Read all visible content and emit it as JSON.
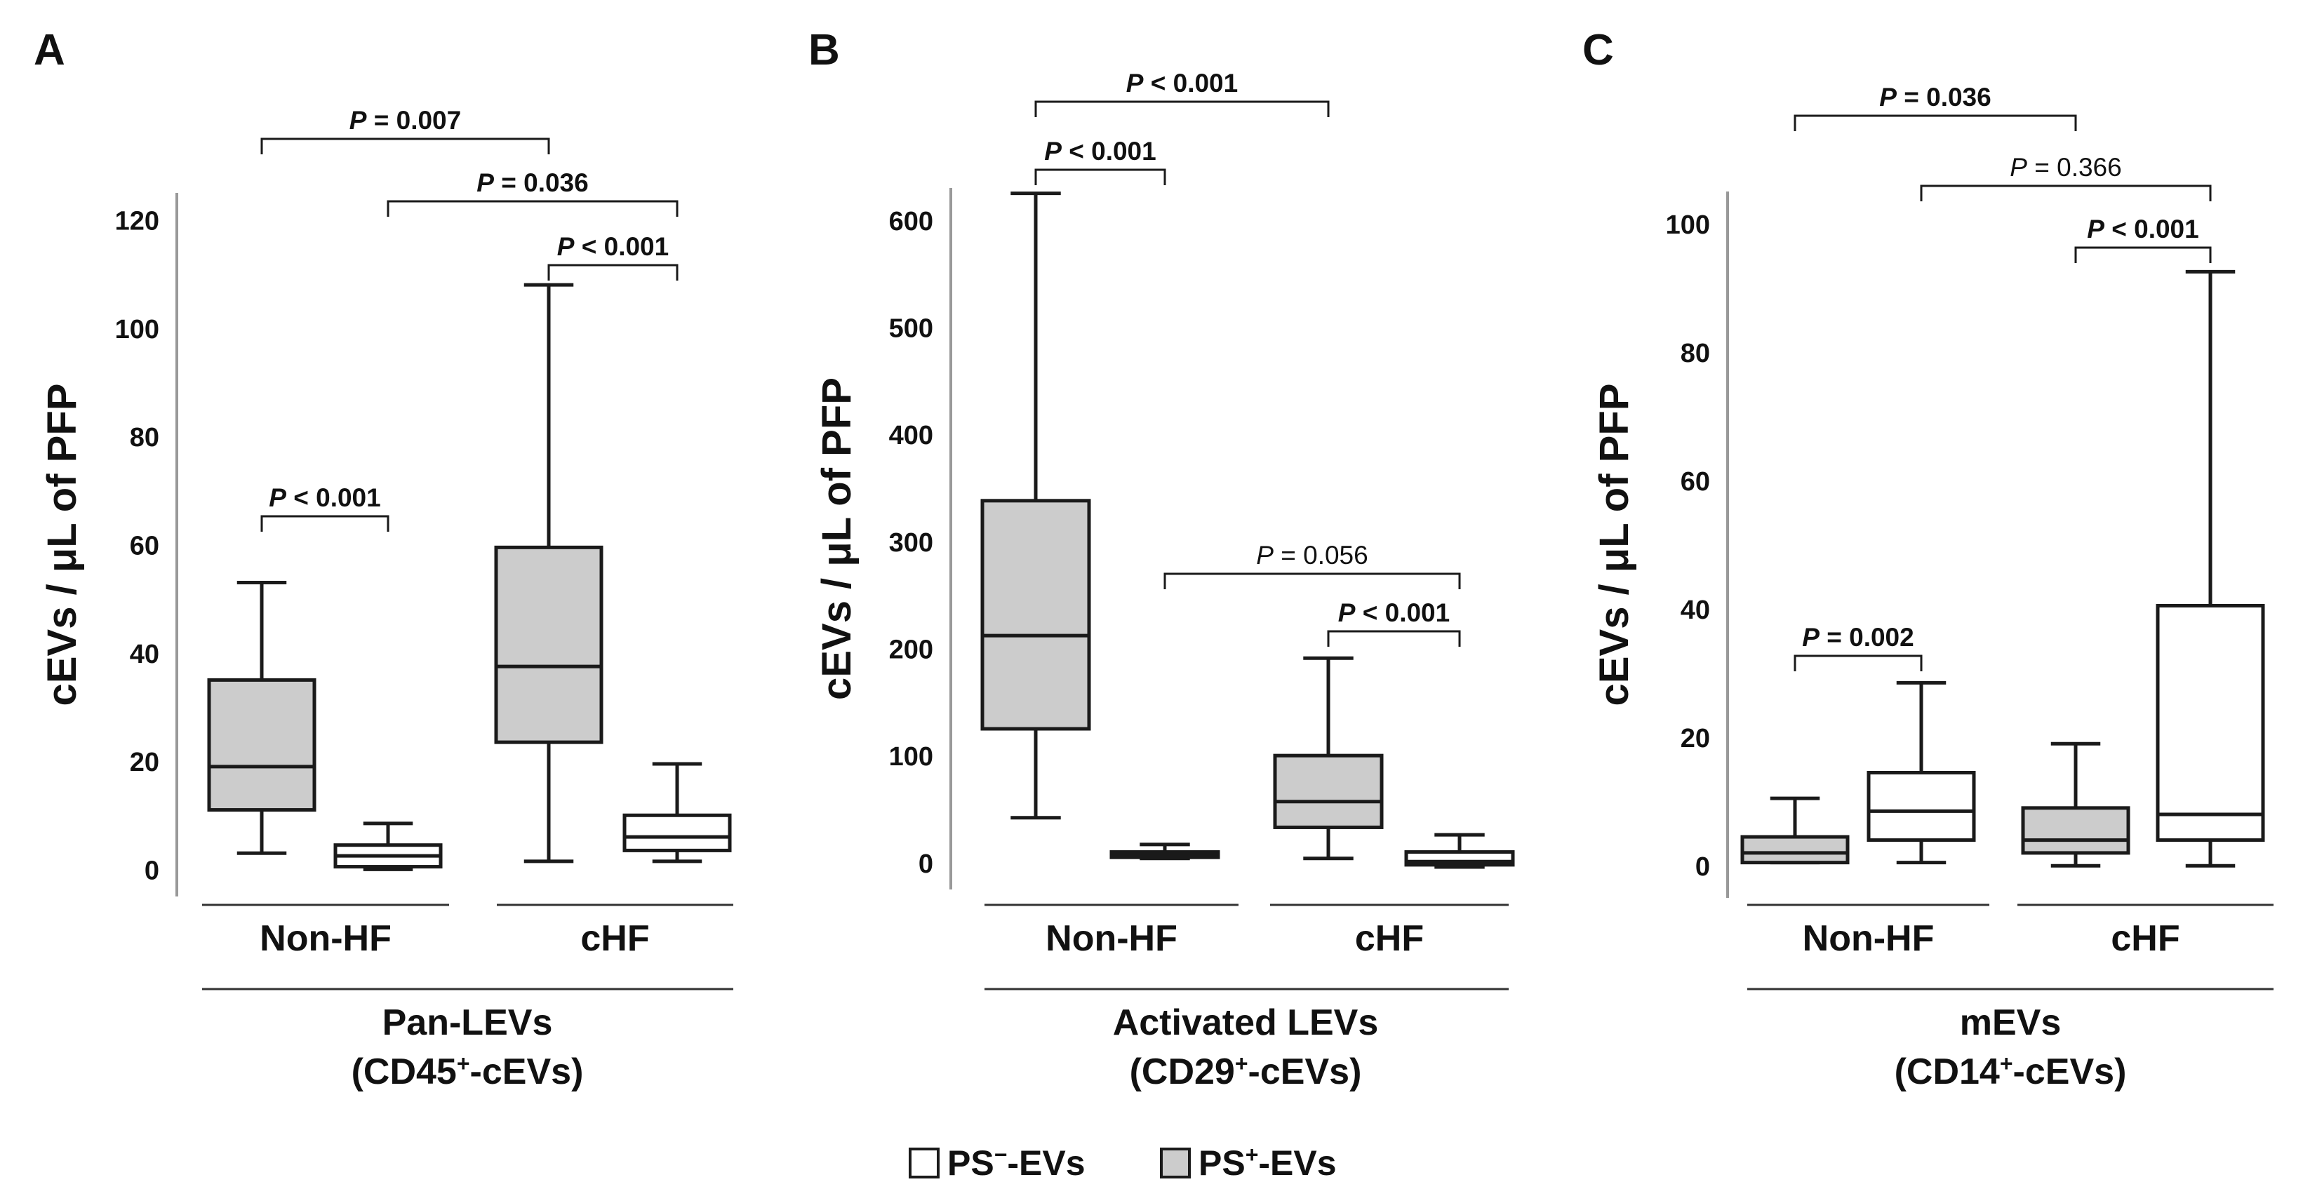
{
  "chart_data": [
    {
      "type": "box",
      "panel_label": "A",
      "title_line1": "Pan-LEVs",
      "title_line2_prefix": "(CD45",
      "title_line2_sup": "+",
      "title_line2_suffix": "-cEVs)",
      "ylabel": "cEVs / μL of PFP",
      "ylim": [
        -5,
        125
      ],
      "yticks": [
        0,
        20,
        40,
        60,
        80,
        100,
        120
      ],
      "groups": [
        "Non-HF",
        "cHF"
      ],
      "boxes": [
        {
          "group": "Non-HF",
          "series": "PS+-EVs",
          "fill": "#cccccc",
          "min": 3,
          "q1": 11,
          "median": 19,
          "q3": 35,
          "max": 53
        },
        {
          "group": "Non-HF",
          "series": "PS--EVs",
          "fill": "#ffffff",
          "min": 0,
          "q1": 0.5,
          "median": 2.5,
          "q3": 4.5,
          "max": 8.5
        },
        {
          "group": "cHF",
          "series": "PS+-EVs",
          "fill": "#cccccc",
          "min": 1.5,
          "q1": 23.5,
          "median": 37.5,
          "q3": 59.5,
          "max": 108
        },
        {
          "group": "cHF",
          "series": "PS--EVs",
          "fill": "#ffffff",
          "min": 1.5,
          "q1": 3.5,
          "median": 6,
          "q3": 10,
          "max": 19.5
        }
      ],
      "comparisons": [
        {
          "from": 0,
          "to": 2,
          "label": "= 0.007",
          "bold": true,
          "level": 0
        },
        {
          "from": 1,
          "to": 3,
          "label": "= 0.036",
          "bold": true,
          "level": 1
        },
        {
          "from": 2,
          "to": 3,
          "label": "< 0.001",
          "bold": true,
          "level": 2
        },
        {
          "from": 0,
          "to": 1,
          "label": "< 0.001",
          "bold": true,
          "level": 3
        }
      ]
    },
    {
      "type": "box",
      "panel_label": "B",
      "title_line1": "Activated LEVs",
      "title_line2_prefix": "(CD29",
      "title_line2_sup": "+",
      "title_line2_suffix": "-cEVs)",
      "ylabel": "cEVs / μL of PFP",
      "ylim": [
        -25,
        630
      ],
      "yticks": [
        0,
        100,
        200,
        300,
        400,
        500,
        600
      ],
      "groups": [
        "Non-HF",
        "cHF"
      ],
      "boxes": [
        {
          "group": "Non-HF",
          "series": "PS+-EVs",
          "fill": "#cccccc",
          "min": 42,
          "q1": 125,
          "median": 212,
          "q3": 338,
          "max": 625
        },
        {
          "group": "Non-HF",
          "series": "PS--EVs",
          "fill": "#ffffff",
          "min": 4,
          "q1": 5,
          "median": 7,
          "q3": 10,
          "max": 17
        },
        {
          "group": "cHF",
          "series": "PS+-EVs",
          "fill": "#cccccc",
          "min": 4,
          "q1": 33,
          "median": 57,
          "q3": 100,
          "max": 191
        },
        {
          "group": "cHF",
          "series": "PS--EVs",
          "fill": "#ffffff",
          "min": -4,
          "q1": -2,
          "median": 1,
          "q3": 10,
          "max": 26
        }
      ],
      "comparisons": [
        {
          "from": 0,
          "to": 2,
          "label": "< 0.001",
          "bold": true,
          "level": 0
        },
        {
          "from": 0,
          "to": 1,
          "label": "< 0.001",
          "bold": true,
          "level": 1
        },
        {
          "from": 1,
          "to": 3,
          "label": "= 0.056",
          "bold": false,
          "level": 2
        },
        {
          "from": 2,
          "to": 3,
          "label": "< 0.001",
          "bold": true,
          "level": 3
        }
      ]
    },
    {
      "type": "box",
      "panel_label": "C",
      "title_line1": "mEVs",
      "title_line2_prefix": "(CD14",
      "title_line2_sup": "+",
      "title_line2_suffix": "-cEVs)",
      "ylabel": "cEVs / μL of PFP",
      "ylim": [
        -5,
        105
      ],
      "yticks": [
        0,
        20,
        40,
        60,
        80,
        100
      ],
      "groups": [
        "Non-HF",
        "cHF"
      ],
      "boxes": [
        {
          "group": "Non-HF",
          "series": "PS+-EVs",
          "fill": "#cccccc",
          "min": 0.5,
          "q1": 0.5,
          "median": 2,
          "q3": 4.5,
          "max": 10.5
        },
        {
          "group": "Non-HF",
          "series": "PS--EVs",
          "fill": "#ffffff",
          "min": 0.5,
          "q1": 4,
          "median": 8.5,
          "q3": 14.5,
          "max": 28.5
        },
        {
          "group": "cHF",
          "series": "PS+-EVs",
          "fill": "#cccccc",
          "min": 0,
          "q1": 2,
          "median": 4,
          "q3": 9,
          "max": 19
        },
        {
          "group": "cHF",
          "series": "PS--EVs",
          "fill": "#ffffff",
          "min": 0,
          "q1": 4,
          "median": 8,
          "q3": 40.5,
          "max": 92.5
        }
      ],
      "comparisons": [
        {
          "from": 0,
          "to": 2,
          "label": "= 0.036",
          "bold": true,
          "level": 0
        },
        {
          "from": 1,
          "to": 3,
          "label": "= 0.366",
          "bold": false,
          "level": 1
        },
        {
          "from": 2,
          "to": 3,
          "label": "< 0.001",
          "bold": true,
          "level": 2
        },
        {
          "from": 0,
          "to": 1,
          "label": "= 0.002",
          "bold": true,
          "level": 3
        }
      ]
    }
  ],
  "p_symbol": "P",
  "legend": {
    "items": [
      {
        "prefix": "PS",
        "sup": "−",
        "suffix": "-EVs",
        "fill": "#ffffff"
      },
      {
        "prefix": "PS",
        "sup": "+",
        "suffix": "-EVs",
        "fill": "#cccccc"
      }
    ]
  }
}
